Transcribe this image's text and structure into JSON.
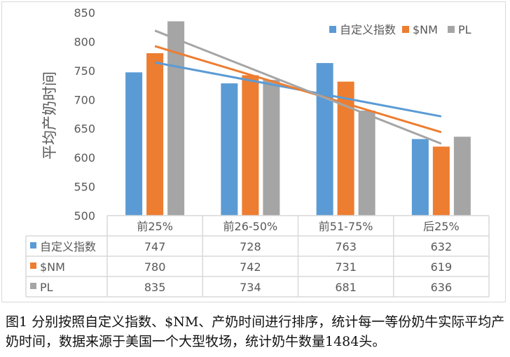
{
  "chart_data": {
    "type": "bar",
    "ylabel": "平均产奶时间",
    "ylim": [
      500,
      850
    ],
    "yticks": [
      500,
      550,
      600,
      650,
      700,
      750,
      800,
      850
    ],
    "categories": [
      "前25%",
      "前26-50%",
      "前51-75%",
      "后25%"
    ],
    "series": [
      {
        "name": "自定义指数",
        "color": "#5b9bd5",
        "values": [
          747,
          728,
          763,
          632
        ]
      },
      {
        "name": "$NM",
        "color": "#ed7d31",
        "values": [
          780,
          742,
          731,
          619
        ]
      },
      {
        "name": "PL",
        "color": "#a5a5a5",
        "values": [
          835,
          734,
          681,
          636
        ]
      }
    ],
    "trendlines": "linear",
    "legend": "top-right",
    "data_table": true,
    "grid": false
  },
  "caption": "图1 分别按照自定义指数、$NM、产奶时间进行排序，统计每一等份奶牛实际平均产奶时间，数据来源于美国一个大型牧场，统计奶牛数量1484头。"
}
